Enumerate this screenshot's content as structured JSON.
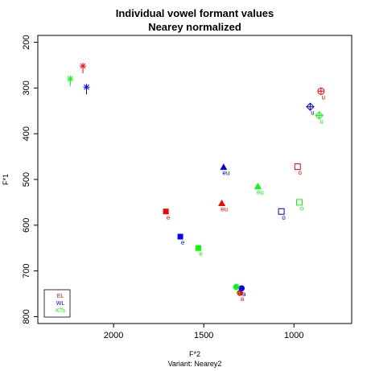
{
  "chart_data": {
    "type": "scatter",
    "title": "Individual vowel formant values",
    "subtitle": "Nearey normalized",
    "xlabel": "F*2",
    "ylabel": "F*1",
    "caption": "Variant: Nearey2",
    "x_reversed": true,
    "y_reversed": true,
    "xlim": [
      2420,
      680
    ],
    "ylim": [
      185,
      815
    ],
    "x_ticks": [
      2000,
      1500,
      1000
    ],
    "y_ticks": [
      200,
      300,
      400,
      500,
      600,
      700,
      800
    ],
    "legend": {
      "position": "bottom-left",
      "entries": [
        "EL",
        "WL",
        "KTs"
      ]
    },
    "colors": {
      "EL": "#ff0000",
      "WL": "#0000ff",
      "KTs": "#00ff00"
    },
    "series": [
      {
        "name": "EL",
        "points": [
          {
            "vowel": "i",
            "x": 2170,
            "y": 252,
            "shape": "asterisk"
          },
          {
            "vowel": "u",
            "x": 850,
            "y": 307,
            "shape": "circle-plus"
          },
          {
            "vowel": "o",
            "x": 980,
            "y": 472,
            "shape": "open-square"
          },
          {
            "vowel": "eu",
            "x": 1400,
            "y": 552,
            "shape": "filled-triangle"
          },
          {
            "vowel": "e",
            "x": 1710,
            "y": 570,
            "shape": "filled-square"
          },
          {
            "vowel": "a",
            "x": 1300,
            "y": 748,
            "shape": "filled-circle"
          }
        ]
      },
      {
        "name": "WL",
        "points": [
          {
            "vowel": "i",
            "x": 2150,
            "y": 298,
            "shape": "asterisk"
          },
          {
            "vowel": "u",
            "x": 910,
            "y": 341,
            "shape": "diamond-plus"
          },
          {
            "vowel": "eu",
            "x": 1390,
            "y": 473,
            "shape": "filled-triangle"
          },
          {
            "vowel": "o",
            "x": 1070,
            "y": 570,
            "shape": "open-square"
          },
          {
            "vowel": "e",
            "x": 1630,
            "y": 625,
            "shape": "filled-square"
          },
          {
            "vowel": "a",
            "x": 1290,
            "y": 738,
            "shape": "filled-circle"
          }
        ]
      },
      {
        "name": "KTs",
        "points": [
          {
            "vowel": "i",
            "x": 2240,
            "y": 280,
            "shape": "asterisk"
          },
          {
            "vowel": "u",
            "x": 860,
            "y": 360,
            "shape": "diamond-plus"
          },
          {
            "vowel": "eu",
            "x": 1200,
            "y": 515,
            "shape": "filled-triangle"
          },
          {
            "vowel": "o",
            "x": 970,
            "y": 550,
            "shape": "open-square"
          },
          {
            "vowel": "e",
            "x": 1530,
            "y": 650,
            "shape": "filled-square"
          },
          {
            "vowel": "a",
            "x": 1320,
            "y": 735,
            "shape": "filled-circle"
          }
        ]
      }
    ]
  }
}
